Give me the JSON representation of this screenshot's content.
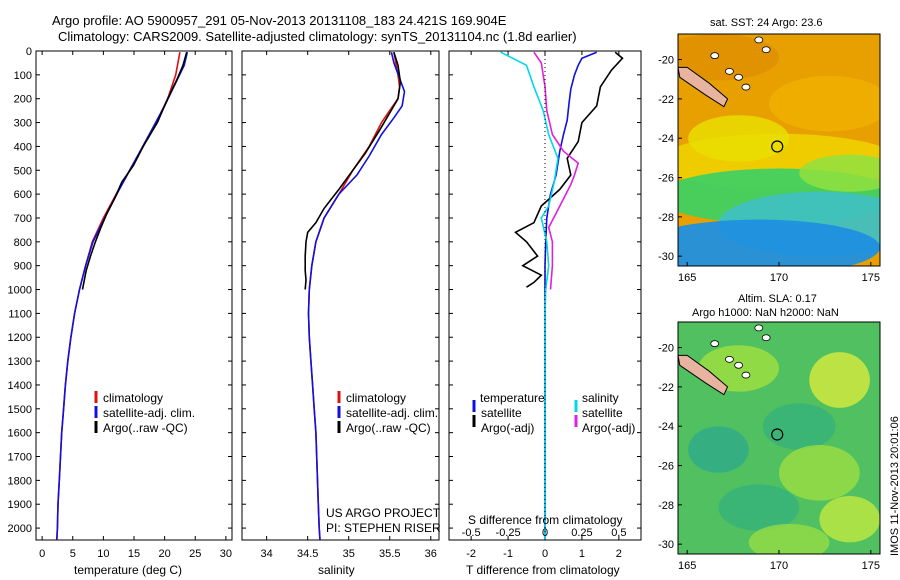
{
  "header": {
    "line1": "Argo profile: AO 5900957_291 05-Nov-2013 20131108_183 24.421S 169.904E",
    "line2": "Climatology: CARS2009. Satellite-adjusted climatology: synTS_20131104.nc (1.8d earlier)"
  },
  "colors": {
    "climatology": "#e01010",
    "satellite": "#1010e0",
    "argo": "#000000",
    "sal_sat": "#00d8e8",
    "sal_argo": "#e020e0"
  },
  "chart_data": [
    {
      "type": "line",
      "panel": "temperature",
      "xlabel": "temperature (deg C)",
      "xlim": [
        -1,
        31
      ],
      "xticks": [
        0,
        5,
        10,
        15,
        20,
        25,
        30
      ],
      "ylim": [
        0,
        2050
      ],
      "yticks": [
        0,
        100,
        200,
        300,
        400,
        500,
        600,
        700,
        800,
        900,
        1000,
        1100,
        1200,
        1300,
        1400,
        1500,
        1600,
        1700,
        1800,
        1900,
        2000
      ],
      "legend": [
        "climatology",
        "satellite-adj. clim.",
        "Argo(..raw -QC)"
      ],
      "series": [
        {
          "name": "climatology",
          "color": "#e01010",
          "points": [
            [
              22.5,
              5
            ],
            [
              21.8,
              100
            ],
            [
              20.5,
              200
            ],
            [
              18.6,
              300
            ],
            [
              16.5,
              400
            ],
            [
              14.3,
              500
            ],
            [
              12.1,
              600
            ],
            [
              10.0,
              700
            ],
            [
              8.2,
              800
            ],
            [
              7.1,
              900
            ],
            [
              6.1,
              1000
            ],
            [
              5.3,
              1100
            ],
            [
              4.7,
              1200
            ],
            [
              4.2,
              1300
            ],
            [
              3.8,
              1400
            ],
            [
              3.5,
              1500
            ],
            [
              3.2,
              1600
            ],
            [
              3.0,
              1700
            ],
            [
              2.8,
              1800
            ],
            [
              2.6,
              1900
            ],
            [
              2.5,
              2000
            ],
            [
              2.4,
              2050
            ]
          ]
        },
        {
          "name": "satellite-adj. clim.",
          "color": "#1010e0",
          "points": [
            [
              23.7,
              5
            ],
            [
              23.2,
              60
            ],
            [
              21.5,
              150
            ],
            [
              20.0,
              230
            ],
            [
              17.9,
              330
            ],
            [
              16.0,
              420
            ],
            [
              14.3,
              500
            ],
            [
              12.4,
              590
            ],
            [
              10.2,
              700
            ],
            [
              8.3,
              800
            ],
            [
              7.1,
              900
            ],
            [
              6.1,
              1000
            ],
            [
              5.3,
              1100
            ],
            [
              4.7,
              1200
            ],
            [
              4.2,
              1300
            ],
            [
              3.8,
              1400
            ],
            [
              3.5,
              1500
            ],
            [
              3.2,
              1600
            ],
            [
              3.0,
              1700
            ],
            [
              2.8,
              1800
            ],
            [
              2.6,
              1900
            ],
            [
              2.5,
              2000
            ],
            [
              2.4,
              2050
            ]
          ]
        },
        {
          "name": "Argo(..raw -QC)",
          "color": "#000000",
          "points": [
            [
              23.6,
              5
            ],
            [
              23.0,
              60
            ],
            [
              22.0,
              120
            ],
            [
              20.5,
              200
            ],
            [
              18.8,
              300
            ],
            [
              16.5,
              400
            ],
            [
              14.9,
              480
            ],
            [
              13.0,
              550
            ],
            [
              11.8,
              620
            ],
            [
              10.6,
              680
            ],
            [
              9.6,
              740
            ],
            [
              8.7,
              800
            ],
            [
              7.9,
              860
            ],
            [
              7.2,
              920
            ],
            [
              6.6,
              1000
            ]
          ]
        }
      ]
    },
    {
      "type": "line",
      "panel": "salinity",
      "xlabel": "salinity",
      "xlim": [
        33.7,
        36.1
      ],
      "xticks": [
        34,
        34.5,
        35,
        35.5,
        36
      ],
      "ylim": [
        0,
        2050
      ],
      "legend": [
        "climatology",
        "satellite-adj. clim.",
        "Argo(..raw -QC)"
      ],
      "annotations": [
        "US ARGO PROJECT",
        "PI: STEPHEN RISER"
      ],
      "series": [
        {
          "name": "climatology",
          "color": "#e01010",
          "points": [
            [
              35.55,
              5
            ],
            [
              35.6,
              100
            ],
            [
              35.62,
              150
            ],
            [
              35.6,
              200
            ],
            [
              35.5,
              250
            ],
            [
              35.4,
              300
            ],
            [
              35.25,
              400
            ],
            [
              35.05,
              500
            ],
            [
              34.88,
              600
            ],
            [
              34.7,
              700
            ],
            [
              34.6,
              800
            ],
            [
              34.55,
              900
            ],
            [
              34.52,
              1000
            ],
            [
              34.51,
              1100
            ],
            [
              34.52,
              1200
            ],
            [
              34.54,
              1300
            ],
            [
              34.56,
              1400
            ],
            [
              34.58,
              1500
            ],
            [
              34.6,
              1600
            ],
            [
              34.61,
              1700
            ],
            [
              34.62,
              1800
            ],
            [
              34.63,
              1900
            ],
            [
              34.64,
              2000
            ],
            [
              34.65,
              2050
            ]
          ]
        },
        {
          "name": "satellite-adj. clim.",
          "color": "#1010e0",
          "points": [
            [
              35.52,
              5
            ],
            [
              35.55,
              50
            ],
            [
              35.68,
              170
            ],
            [
              35.65,
              230
            ],
            [
              35.55,
              280
            ],
            [
              35.4,
              350
            ],
            [
              35.25,
              440
            ],
            [
              35.1,
              520
            ],
            [
              34.88,
              600
            ],
            [
              34.7,
              700
            ],
            [
              34.6,
              800
            ],
            [
              34.55,
              900
            ],
            [
              34.52,
              1000
            ],
            [
              34.51,
              1100
            ],
            [
              34.52,
              1200
            ],
            [
              34.54,
              1300
            ],
            [
              34.56,
              1400
            ],
            [
              34.58,
              1500
            ],
            [
              34.6,
              1600
            ],
            [
              34.61,
              1700
            ],
            [
              34.62,
              1800
            ],
            [
              34.63,
              1900
            ],
            [
              34.64,
              2000
            ],
            [
              34.65,
              2050
            ]
          ]
        },
        {
          "name": "Argo(..raw -QC)",
          "color": "#000000",
          "points": [
            [
              35.55,
              5
            ],
            [
              35.6,
              60
            ],
            [
              35.63,
              130
            ],
            [
              35.6,
              200
            ],
            [
              35.5,
              260
            ],
            [
              35.38,
              330
            ],
            [
              35.2,
              430
            ],
            [
              35.05,
              500
            ],
            [
              34.88,
              580
            ],
            [
              34.7,
              660
            ],
            [
              34.6,
              720
            ],
            [
              34.5,
              760
            ],
            [
              34.48,
              800
            ],
            [
              34.47,
              860
            ],
            [
              34.47,
              920
            ],
            [
              34.48,
              960
            ],
            [
              34.47,
              1000
            ]
          ]
        }
      ]
    },
    {
      "type": "line",
      "panel": "difference",
      "xlabel": "T difference from climatology",
      "xlim": [
        -2.6,
        2.6
      ],
      "xticks": [
        -2,
        -1,
        0,
        1,
        2
      ],
      "x2label": "S difference from climatology",
      "x2ticks": [
        "-0.5",
        "-0.25",
        "0",
        "0.25",
        "0.5"
      ],
      "ylim": [
        0,
        2050
      ],
      "legend_groups": [
        "temperature",
        "salinity"
      ],
      "legend": [
        "satellite",
        "Argo(-adj)",
        "satellite",
        "Argo(-adj)"
      ],
      "series": [
        {
          "name": "satellite",
          "group": "temperature",
          "color": "#1010e0",
          "points": [
            [
              1.4,
              5
            ],
            [
              1.0,
              30
            ],
            [
              0.9,
              60
            ],
            [
              0.8,
              100
            ],
            [
              0.7,
              160
            ],
            [
              0.65,
              220
            ],
            [
              0.6,
              290
            ],
            [
              0.5,
              350
            ],
            [
              0.4,
              420
            ],
            [
              0.3,
              520
            ],
            [
              0.15,
              600
            ],
            [
              0.05,
              700
            ],
            [
              0.02,
              800
            ],
            [
              0,
              900
            ],
            [
              0,
              2050
            ]
          ]
        },
        {
          "name": "Argo(-adj)",
          "group": "temperature",
          "color": "#000000",
          "points": [
            [
              1.9,
              5
            ],
            [
              2.1,
              30
            ],
            [
              1.8,
              80
            ],
            [
              1.5,
              150
            ],
            [
              1.4,
              230
            ],
            [
              1.0,
              300
            ],
            [
              0.9,
              380
            ],
            [
              0.6,
              450
            ],
            [
              0.7,
              520
            ],
            [
              0.4,
              580
            ],
            [
              -0.1,
              650
            ],
            [
              -0.3,
              720
            ],
            [
              -0.8,
              760
            ],
            [
              -0.5,
              800
            ],
            [
              -0.2,
              860
            ],
            [
              -0.6,
              900
            ],
            [
              -0.1,
              940
            ],
            [
              -0.3,
              970
            ],
            [
              -0.5,
              990
            ]
          ]
        },
        {
          "name": "satellite",
          "group": "salinity",
          "color": "#00d8e8",
          "points": [
            [
              -1.2,
              5
            ],
            [
              -0.5,
              60
            ],
            [
              -0.3,
              150
            ],
            [
              -0.05,
              250
            ],
            [
              0.1,
              350
            ],
            [
              0.35,
              450
            ],
            [
              0.25,
              550
            ],
            [
              0.1,
              650
            ],
            [
              -0.1,
              700
            ],
            [
              0.05,
              800
            ],
            [
              0.1,
              900
            ],
            [
              0.02,
              1000
            ],
            [
              0,
              1100
            ],
            [
              0,
              2050
            ]
          ]
        },
        {
          "name": "Argo(-adj)",
          "group": "salinity",
          "color": "#e020e0",
          "points": [
            [
              -0.3,
              5
            ],
            [
              -0.1,
              50
            ],
            [
              0.0,
              150
            ],
            [
              0.05,
              250
            ],
            [
              0.2,
              350
            ],
            [
              0.5,
              420
            ],
            [
              0.9,
              470
            ],
            [
              0.8,
              520
            ],
            [
              0.7,
              560
            ],
            [
              0.5,
              620
            ],
            [
              0.3,
              680
            ],
            [
              0.1,
              740
            ],
            [
              0.2,
              800
            ],
            [
              0.2,
              900
            ],
            [
              0.15,
              1000
            ]
          ]
        }
      ]
    },
    {
      "type": "heatmap",
      "panel": "sst-map",
      "title": "sat. SST: 24 Argo: 23.6",
      "xticks": [
        165,
        170,
        175
      ],
      "yticks": [
        -20,
        -22,
        -24,
        -26,
        -28,
        -30
      ],
      "xlim": [
        164.5,
        175.5
      ],
      "ylim": [
        -30.5,
        -18.7
      ],
      "marker": {
        "lon": 169.904,
        "lat": -24.421
      }
    },
    {
      "type": "heatmap",
      "panel": "sla-map",
      "title": "Altim. SLA: 0.17",
      "subtitle": "Argo h1000: NaN h2000: NaN",
      "side_label": "IMOS 11-Nov-2013 20:01:06",
      "xticks": [
        165,
        170,
        175
      ],
      "yticks": [
        -20,
        -22,
        -24,
        -26,
        -28,
        -30
      ],
      "xlim": [
        164.5,
        175.5
      ],
      "ylim": [
        -30.5,
        -18.7
      ],
      "marker": {
        "lon": 169.904,
        "lat": -24.421
      }
    }
  ]
}
